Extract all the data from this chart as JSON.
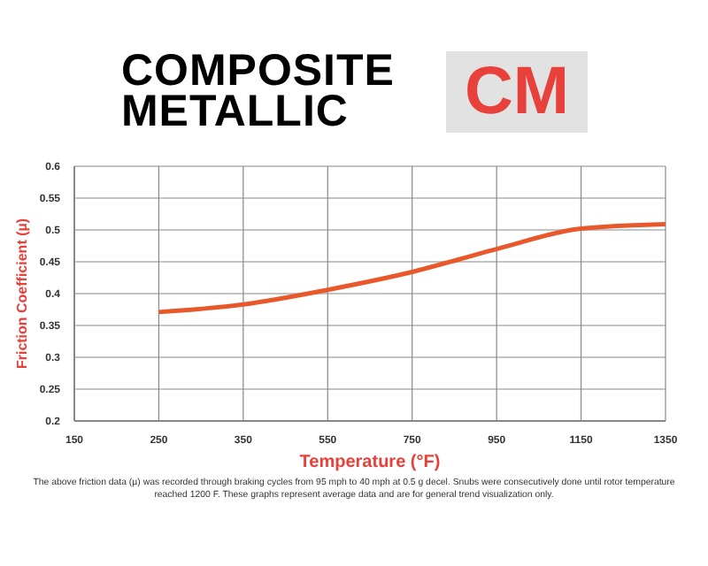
{
  "chart_data": {
    "type": "line",
    "title": "COMPOSITE METALLIC",
    "subtitle": "CM",
    "xlabel": "Temperature (°F)",
    "ylabel": "Friction Coefficient (µ)",
    "categories": [
      "150",
      "250",
      "350",
      "550",
      "750",
      "950",
      "1150",
      "1350"
    ],
    "series": [
      {
        "color": "#e8582a",
        "values": [
          null,
          0.371,
          0.383,
          0.406,
          0.434,
          0.47,
          0.502,
          0.509
        ]
      }
    ],
    "ylim": [
      0.2,
      0.6
    ],
    "yticks": [
      0.2,
      0.25,
      0.3,
      0.35,
      0.4,
      0.45,
      0.5,
      0.55,
      0.6
    ],
    "grid": true,
    "legend": false,
    "marker": "none",
    "line_style": "solid",
    "annotations": [
      "The above friction data (µ) was recorded through braking cycles from 95 mph to 40 mph at 0.5 g decel. Snubs were consecutively done until rotor temperature reached 1200 F. These graphs represent average data and are for general trend visualization only."
    ]
  }
}
